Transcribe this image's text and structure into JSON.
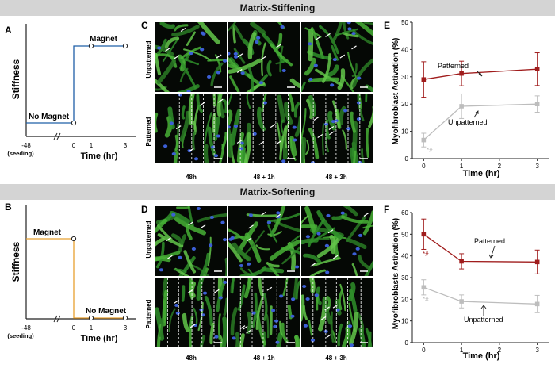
{
  "banners": {
    "top": "Matrix-Stiffening",
    "bottom": "Matrix-Softening"
  },
  "panels": {
    "A": {
      "letter": "A",
      "ylabel": "Stiffness",
      "xlabel": "Time (hr)",
      "ticks": [
        "-48",
        "0",
        "1",
        "3"
      ],
      "seeding": "(seeding)",
      "low_label": "No Magnet",
      "high_label": "Magnet",
      "line_color": "#1f5fa8"
    },
    "B": {
      "letter": "B",
      "ylabel": "Stiffness",
      "xlabel": "Time (hr)",
      "ticks": [
        "-48",
        "0",
        "1",
        "3"
      ],
      "seeding": "(seeding)",
      "high_label": "Magnet",
      "low_label": "No Magnet",
      "line_color": "#e8a030"
    },
    "C": {
      "letter": "C",
      "row_labels": [
        "Unpatterned",
        "Patterned"
      ],
      "col_labels": [
        "48h",
        "48 + 1h",
        "48 + 3h"
      ]
    },
    "D": {
      "letter": "D",
      "row_labels": [
        "Unpatterned",
        "Patterned"
      ],
      "col_labels": [
        "48h",
        "48 + 1h",
        "48 + 3h"
      ]
    }
  },
  "chart_data": [
    {
      "panel": "E",
      "type": "line",
      "ylabel": "Myofibroblast Activation (%)",
      "xlabel": "Time (hr)",
      "xlim": [
        -0.3,
        3.3
      ],
      "ylim": [
        0,
        50
      ],
      "xticks": [
        0,
        1,
        2,
        3
      ],
      "yticks": [
        0,
        10,
        20,
        30,
        40,
        50
      ],
      "annotation": "*#",
      "annotation_color": "#bbbbbb",
      "series": [
        {
          "name": "Patterned",
          "color": "#a01c1c",
          "x": [
            0,
            1,
            3
          ],
          "y": [
            29,
            31.2,
            32.8
          ],
          "err": [
            6.5,
            4.5,
            6
          ]
        },
        {
          "name": "Unpatterned",
          "color": "#bdbdbd",
          "x": [
            0,
            1,
            3
          ],
          "y": [
            6.8,
            19.2,
            20
          ],
          "err": [
            2.5,
            4.5,
            3
          ]
        }
      ]
    },
    {
      "panel": "F",
      "type": "line",
      "ylabel": "Myofibroblasts Activation (%)",
      "xlabel": "Time (hr)",
      "xlim": [
        -0.3,
        3.3
      ],
      "ylim": [
        0,
        60
      ],
      "xticks": [
        0,
        1,
        2,
        3
      ],
      "yticks": [
        0,
        10,
        20,
        30,
        40,
        50,
        60
      ],
      "annotation_red": "*#",
      "annotation_gray": "*#",
      "series": [
        {
          "name": "Patterned",
          "color": "#a01c1c",
          "x": [
            0,
            1,
            3
          ],
          "y": [
            50,
            37.5,
            37.2
          ],
          "err": [
            7,
            3.5,
            5.5
          ]
        },
        {
          "name": "Unpatterned",
          "color": "#bdbdbd",
          "x": [
            0,
            1,
            3
          ],
          "y": [
            25.5,
            19,
            17.8
          ],
          "err": [
            3.5,
            3,
            4
          ]
        }
      ]
    }
  ]
}
